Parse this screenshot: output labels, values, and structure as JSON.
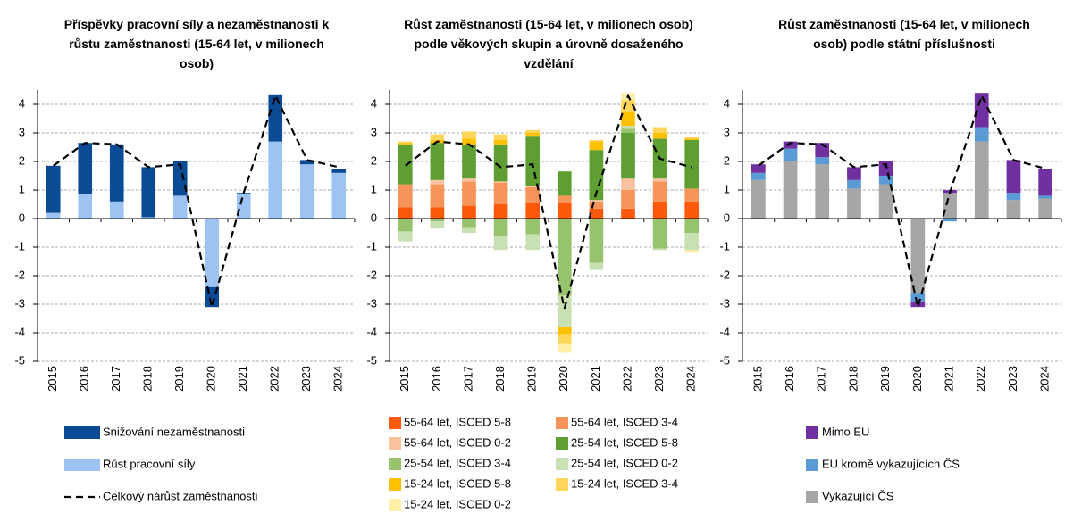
{
  "chart_data": [
    {
      "type": "bar",
      "title": "Příspěvky pracovní síly a nezaměstnanosti k růstu zaměstnanosti (15-64 let, v milionech osob)",
      "categories": [
        "2015",
        "2016",
        "2017",
        "2018",
        "2019",
        "2020",
        "2021",
        "2022",
        "2023",
        "2024"
      ],
      "ylim": [
        -5,
        4.5
      ],
      "yticks": [
        -5,
        -4,
        -3,
        -2,
        -1,
        0,
        1,
        2,
        3,
        4
      ],
      "grid": true,
      "series": [
        {
          "name": "Růst pracovní síly",
          "color": "#9dc3f3",
          "values": [
            0.2,
            0.85,
            0.6,
            0.05,
            0.8,
            -2.4,
            0.85,
            2.7,
            1.9,
            1.6
          ]
        },
        {
          "name": "Snižování nezaměstnanosti",
          "color": "#0b4a94",
          "values": [
            1.65,
            1.8,
            2.0,
            1.75,
            1.2,
            -0.7,
            0.05,
            1.65,
            0.15,
            0.15
          ]
        }
      ],
      "total": {
        "name": "Celkový nárůst zaměstnanosti",
        "color": "#000000",
        "values": [
          1.85,
          2.65,
          2.6,
          1.8,
          1.9,
          -3.1,
          0.9,
          4.3,
          2.05,
          1.8
        ]
      }
    },
    {
      "type": "bar",
      "title": "Růst zaměstnanosti (15-64 let, v milionech osob) podle věkových skupin a úrovně dosaženého vzdělání",
      "categories": [
        "2015",
        "2016",
        "2017",
        "2018",
        "2019",
        "2020",
        "2021",
        "2022",
        "2023",
        "2024"
      ],
      "ylim": [
        -5,
        4.5
      ],
      "yticks": [
        -5,
        -4,
        -3,
        -2,
        -1,
        0,
        1,
        2,
        3,
        4
      ],
      "grid": true,
      "series": [
        {
          "name": "55-64 let, ISCED 5-8",
          "color": "#fa5a0a",
          "values": [
            0.4,
            0.4,
            0.45,
            0.5,
            0.55,
            0.55,
            0.35,
            0.35,
            0.6,
            0.6
          ]
        },
        {
          "name": "55-64 let, ISCED 3-4",
          "color": "#f7945a",
          "values": [
            0.8,
            0.8,
            0.85,
            0.75,
            0.55,
            0.25,
            0.25,
            0.65,
            0.7,
            0.45
          ]
        },
        {
          "name": "55-64 let, ISCED 0-2",
          "color": "#fbc2a0",
          "values": [
            0,
            0.15,
            0.1,
            0.05,
            0.05,
            0,
            0.05,
            0.4,
            0.1,
            0
          ]
        },
        {
          "name": "25-54 let, ISCED 5-8",
          "color": "#5e9e32",
          "values": [
            1.4,
            1.3,
            1.2,
            1.3,
            1.75,
            0.85,
            1.75,
            1.6,
            1.4,
            1.7
          ]
        },
        {
          "name": "25-54 let, ISCED 3-4",
          "color": "#97c36e",
          "values": [
            -0.45,
            -0.1,
            -0.3,
            -0.6,
            -0.55,
            -2.7,
            -1.55,
            0.15,
            -1.05,
            -0.5
          ]
        },
        {
          "name": "25-54 let, ISCED 0-2",
          "color": "#c9e0b2",
          "values": [
            -0.35,
            -0.25,
            -0.2,
            -0.5,
            -0.55,
            -1.1,
            -0.25,
            0.1,
            -0.05,
            -0.6
          ]
        },
        {
          "name": "15-24 let, ISCED 5-8",
          "color": "#ffc000",
          "values": [
            0.05,
            0.1,
            0.2,
            0.15,
            0.1,
            -0.25,
            0.3,
            0.5,
            0.2,
            0.05
          ]
        },
        {
          "name": "15-24 let, ISCED 3-4",
          "color": "#ffd659",
          "values": [
            0.05,
            0.2,
            0.25,
            0.2,
            0.1,
            -0.35,
            0.05,
            0.4,
            0.2,
            0.05
          ]
        },
        {
          "name": "15-24 let, ISCED 0-2",
          "color": "#fff0a8",
          "values": [
            0,
            0,
            0,
            0,
            0,
            -0.3,
            0,
            0.25,
            0,
            -0.1
          ]
        }
      ],
      "total": {
        "color": "#000000",
        "values": [
          1.85,
          2.7,
          2.6,
          1.8,
          1.9,
          -3.15,
          0.9,
          4.3,
          2.1,
          1.8
        ]
      }
    },
    {
      "type": "bar",
      "title": "Růst zaměstnanosti (15-64 let, v milionech osob) podle státní příslušnosti",
      "categories": [
        "2015",
        "2016",
        "2017",
        "2018",
        "2019",
        "2020",
        "2021",
        "2022",
        "2023",
        "2024"
      ],
      "ylim": [
        -5,
        4.5
      ],
      "yticks": [
        -5,
        -4,
        -3,
        -2,
        -1,
        0,
        1,
        2,
        3,
        4
      ],
      "grid": true,
      "series": [
        {
          "name": "Vykazující ČS",
          "color": "#a6a6a6",
          "values": [
            1.35,
            2.0,
            1.9,
            1.05,
            1.2,
            -2.6,
            0.9,
            2.7,
            0.65,
            0.7
          ]
        },
        {
          "name": "EU kromě vykazujících ČS",
          "color": "#5b9bd5",
          "values": [
            0.25,
            0.45,
            0.25,
            0.3,
            0.3,
            -0.3,
            -0.1,
            0.5,
            0.25,
            0.1
          ]
        },
        {
          "name": "Mimo EU",
          "color": "#7030a0",
          "values": [
            0.3,
            0.25,
            0.5,
            0.45,
            0.5,
            -0.2,
            0.1,
            1.2,
            1.15,
            0.95
          ]
        }
      ],
      "total": {
        "color": "#000000",
        "values": [
          1.85,
          2.65,
          2.6,
          1.8,
          1.9,
          -3.1,
          0.9,
          4.3,
          2.05,
          1.75
        ]
      }
    }
  ]
}
